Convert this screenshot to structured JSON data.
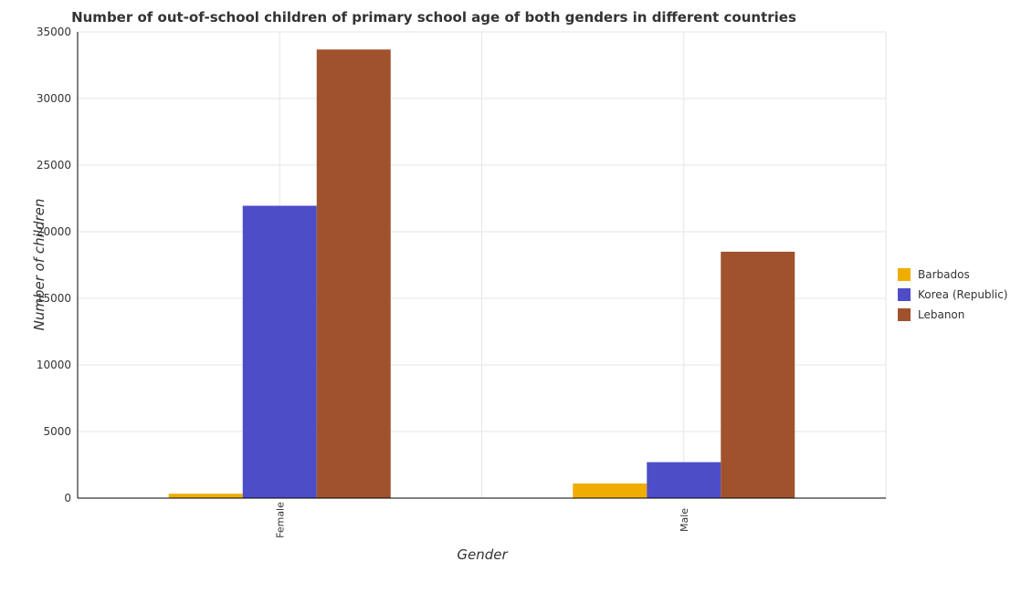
{
  "chart_data": {
    "type": "bar",
    "title": "Number of out-of-school children of primary school age of both genders in different countries",
    "xlabel": "Gender",
    "ylabel": "Number of children",
    "categories": [
      "Female",
      "Male"
    ],
    "series": [
      {
        "name": "Barbados",
        "color": "#f0ad00",
        "values": [
          330,
          1100
        ]
      },
      {
        "name": "Korea (Republic)",
        "color": "#4d4dc8",
        "values": [
          21950,
          2700
        ]
      },
      {
        "name": "Lebanon",
        "color": "#a0522d",
        "values": [
          33680,
          18500
        ]
      }
    ],
    "ylim": [
      0,
      35000
    ],
    "yticks": [
      0,
      5000,
      10000,
      15000,
      20000,
      25000,
      30000,
      35000
    ],
    "ytick_labels": [
      "0",
      "5000",
      "10000",
      "15000",
      "20000",
      "25000",
      "30000",
      "35000"
    ],
    "grid": true,
    "legend_position": "right"
  }
}
